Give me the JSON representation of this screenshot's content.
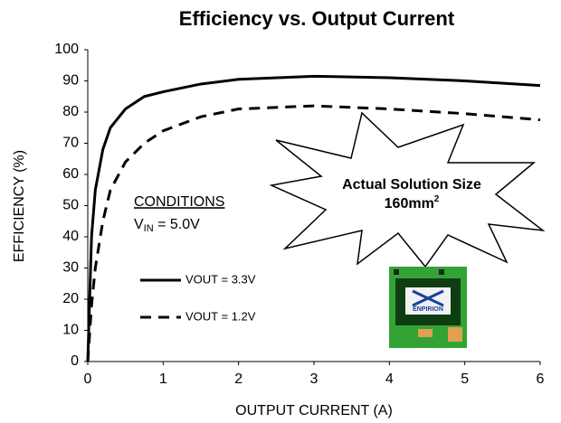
{
  "chart_data": {
    "type": "line",
    "title": "Efficiency vs. Output Current",
    "x_label": "OUTPUT CURRENT (A)",
    "y_label": "EFFICIENCY (%)",
    "xlim": [
      0,
      6
    ],
    "xticks": [
      0,
      1,
      2,
      3,
      4,
      5,
      6
    ],
    "ylim": [
      0,
      100
    ],
    "yticks": [
      0,
      10,
      20,
      30,
      40,
      50,
      60,
      70,
      80,
      90,
      100
    ],
    "grid": false,
    "x": [
      0,
      0.05,
      0.1,
      0.2,
      0.3,
      0.5,
      0.75,
      1,
      1.5,
      2,
      3,
      4,
      5,
      6
    ],
    "series": [
      {
        "name": "VOUT = 3.3V",
        "color": "#000000",
        "dash": "solid",
        "values": [
          0,
          40,
          55,
          68,
          75,
          81,
          85,
          86.5,
          89,
          90.5,
          91.5,
          91,
          90,
          88.5
        ]
      },
      {
        "name": "VOUT = 1.2V",
        "color": "#000000",
        "dash": "dashed",
        "values": [
          0,
          18,
          30,
          45,
          55,
          64,
          70,
          74,
          78.5,
          81,
          82,
          81,
          79.5,
          77.5
        ]
      }
    ],
    "conditions": {
      "heading": "CONDITIONS",
      "vin": [
        "V",
        "IN",
        " = 5.0V"
      ]
    },
    "callout": {
      "line1": "Actual Solution Size",
      "line2": [
        "160mm",
        "2"
      ]
    },
    "board_logo": "ENPIRION"
  }
}
